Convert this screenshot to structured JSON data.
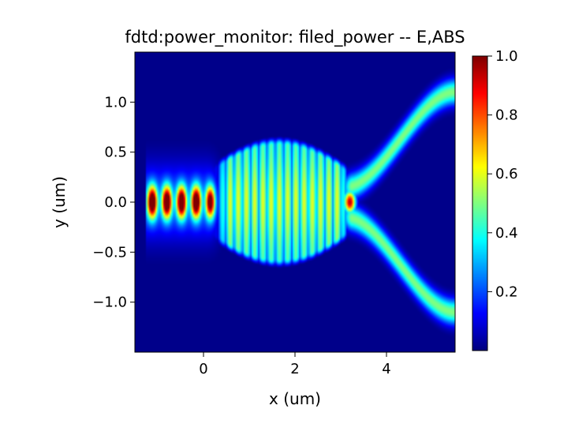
{
  "chart_data": {
    "type": "heatmap",
    "title": "fdtd:power_monitor: filed_power -- E,ABS",
    "xlabel": "x (um)",
    "ylabel": "y (um)",
    "xlim": [
      -1.5,
      5.5
    ],
    "ylim": [
      -1.5,
      1.5
    ],
    "x_ticks": [
      0,
      2,
      4
    ],
    "x_tick_labels": [
      "0",
      "2",
      "4"
    ],
    "y_ticks": [
      -1.0,
      -0.5,
      0.0,
      0.5,
      1.0
    ],
    "y_tick_labels": [
      "−1.0",
      "−0.5",
      "0.0",
      "0.5",
      "1.0"
    ],
    "colormap": "jet",
    "color_range": [
      0,
      1.0
    ],
    "colorbar_ticks": [
      0.2,
      0.4,
      0.6,
      0.8,
      1.0
    ],
    "colorbar_tick_labels": [
      "0.2",
      "0.4",
      "0.6",
      "0.8",
      "1.0"
    ],
    "field_structure": {
      "input_waveguide": {
        "x_range": [
          -1.25,
          0.4
        ],
        "half_width": 0.3,
        "peak_value": 1.0
      },
      "mmi_region": {
        "x_range": [
          0.4,
          3.0
        ],
        "half_width": 0.65,
        "peak_value": 0.6
      },
      "focus_spot": {
        "x": 3.2,
        "y": 0.0,
        "peak_value": 0.95
      },
      "output_arms": [
        {
          "start": [
            3.1,
            0.15
          ],
          "end": [
            5.5,
            1.1
          ],
          "peak_value": 0.5
        },
        {
          "start": [
            3.1,
            -0.15
          ],
          "end": [
            5.5,
            -1.1
          ],
          "peak_value": 0.5
        }
      ]
    }
  }
}
